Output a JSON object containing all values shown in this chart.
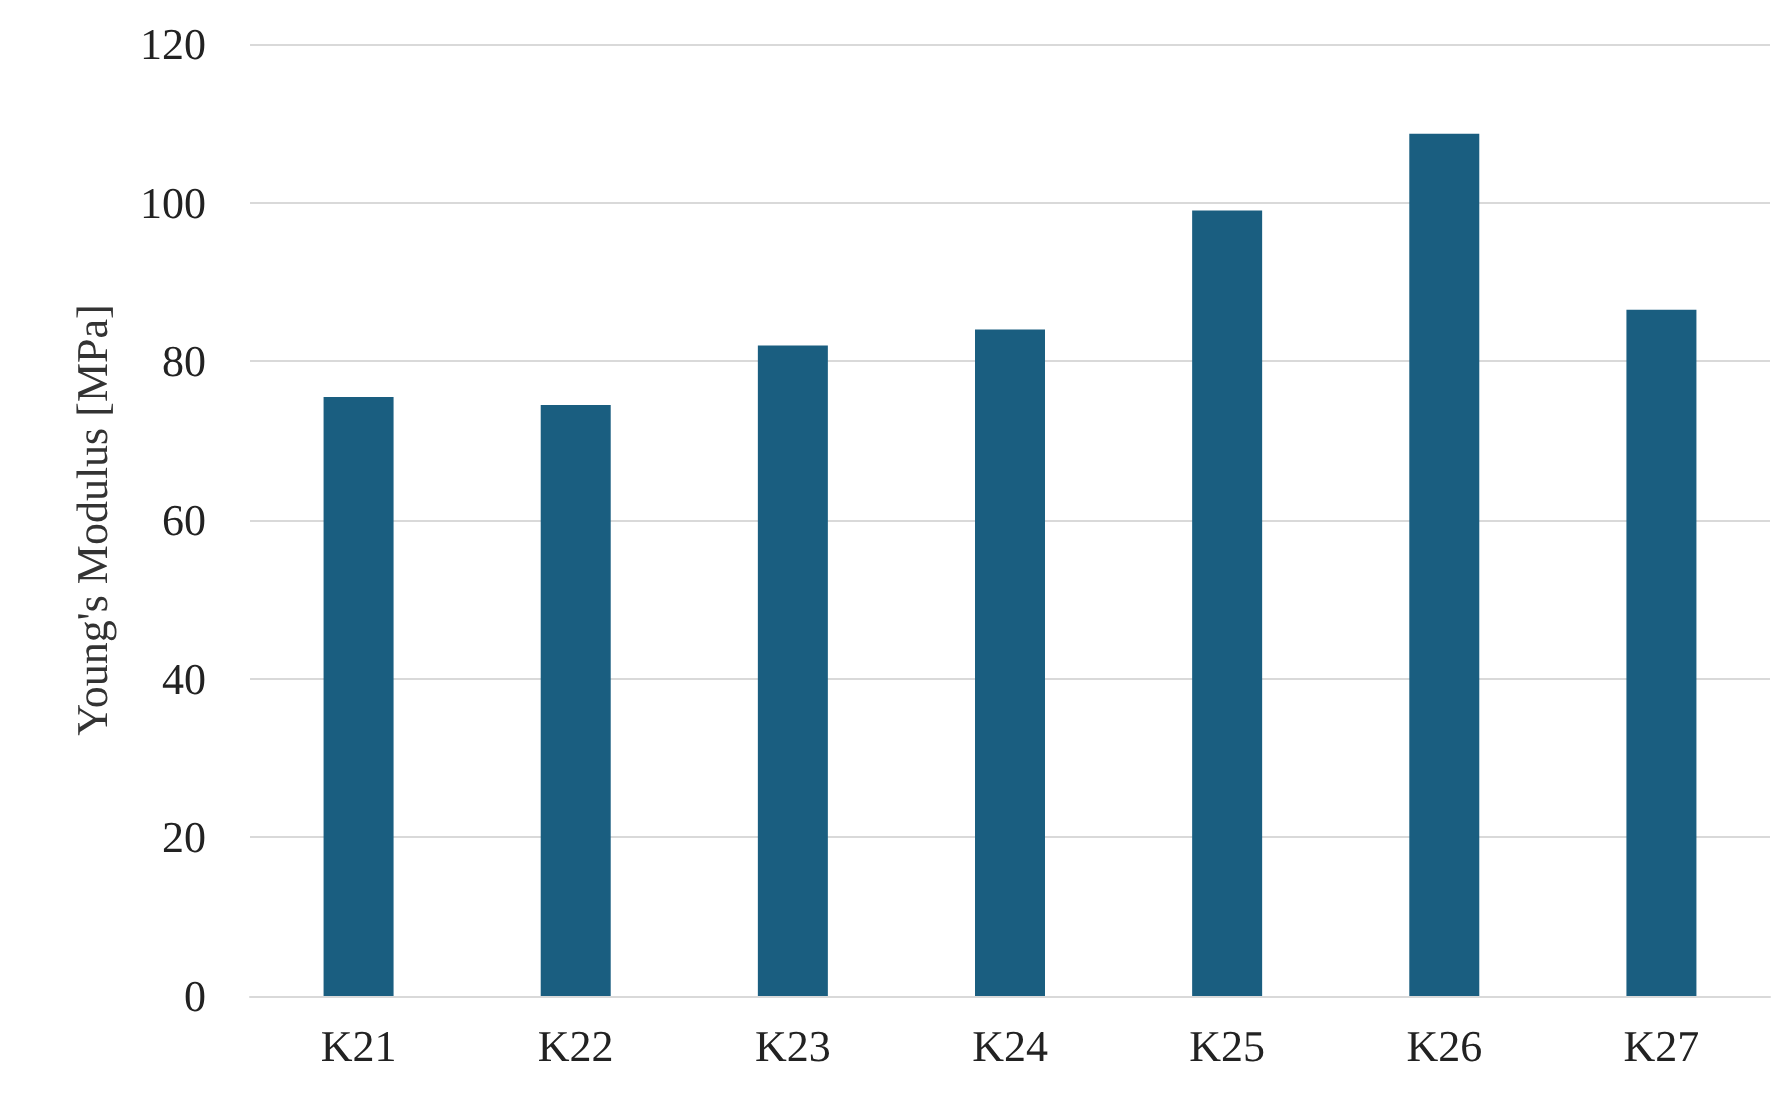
{
  "chart_data": {
    "type": "bar",
    "ylabel": "Young's Modulus [MPa]",
    "categories": [
      "K21",
      "K22",
      "K23",
      "K24",
      "K25",
      "K26",
      "K27"
    ],
    "values": [
      75.5,
      74.5,
      82,
      84,
      99,
      108.7,
      86.5
    ],
    "color": "#1a5e80",
    "ylim": [
      0,
      120
    ],
    "yticks": [
      0,
      20,
      40,
      60,
      80,
      100,
      120
    ],
    "grid": "y"
  }
}
